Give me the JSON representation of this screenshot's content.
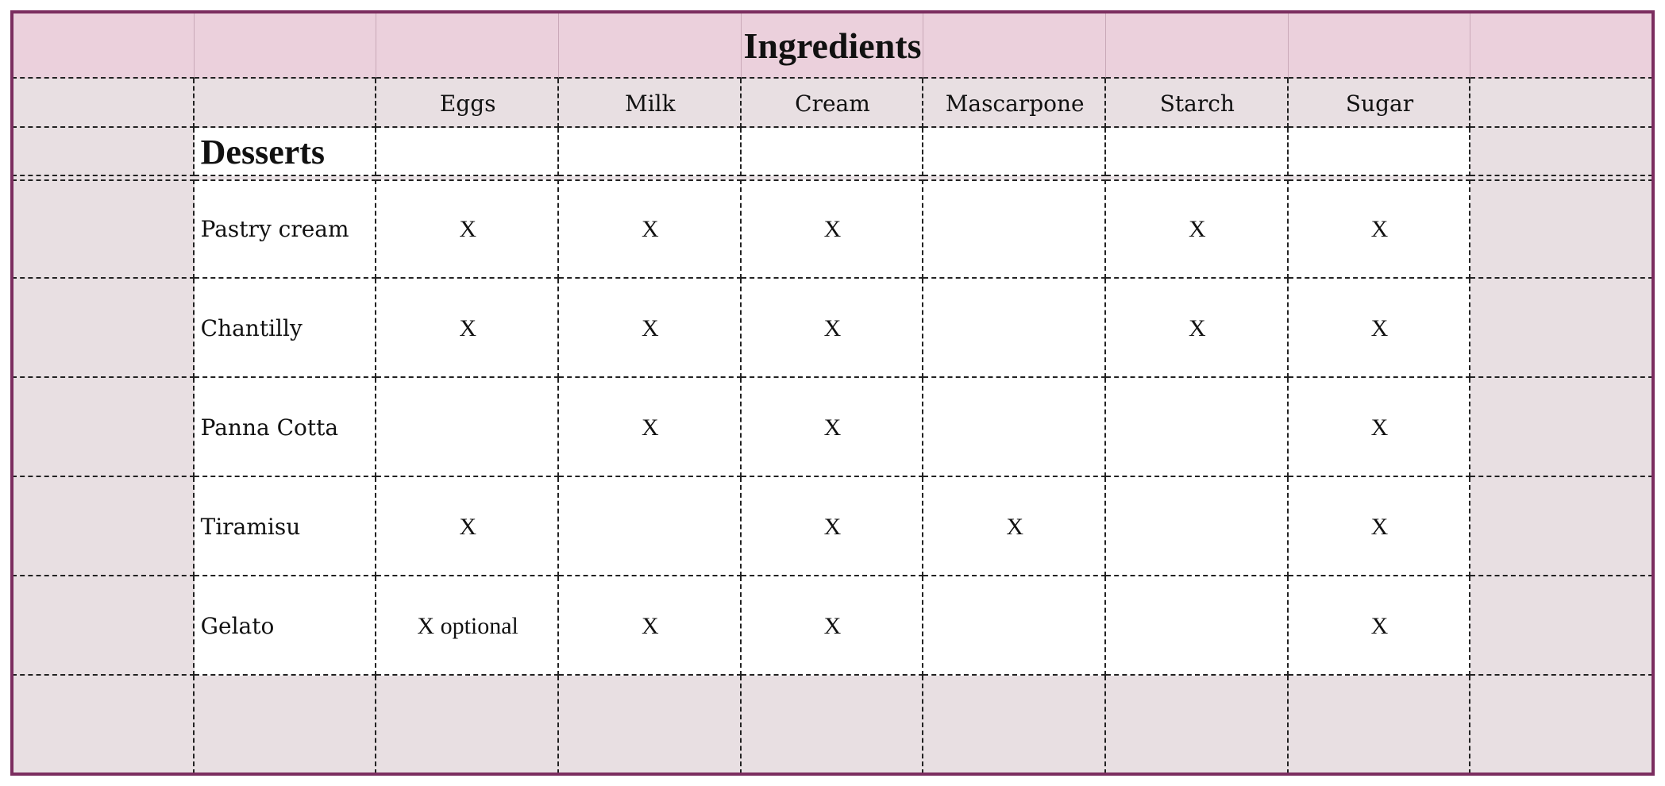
{
  "title": "Ingredients",
  "section": "Desserts",
  "columns": [
    "Eggs",
    "Milk",
    "Cream",
    "Mascarpone",
    "Starch",
    "Sugar"
  ],
  "rows": [
    {
      "name": "Pastry cream",
      "cells": [
        "X",
        "X",
        "X",
        null,
        "X",
        "X"
      ]
    },
    {
      "name": "Chantilly",
      "cells": [
        "X",
        "X",
        "X",
        null,
        "X",
        "X"
      ]
    },
    {
      "name": "Panna Cotta",
      "cells": [
        null,
        "X",
        "X",
        null,
        null,
        "X"
      ]
    },
    {
      "name": "Tiramisu",
      "cells": [
        "X",
        null,
        "X",
        "X",
        null,
        "X"
      ]
    },
    {
      "name": "Gelato",
      "cells": [
        "X optional",
        "X",
        "X",
        null,
        null,
        "X"
      ]
    }
  ]
}
